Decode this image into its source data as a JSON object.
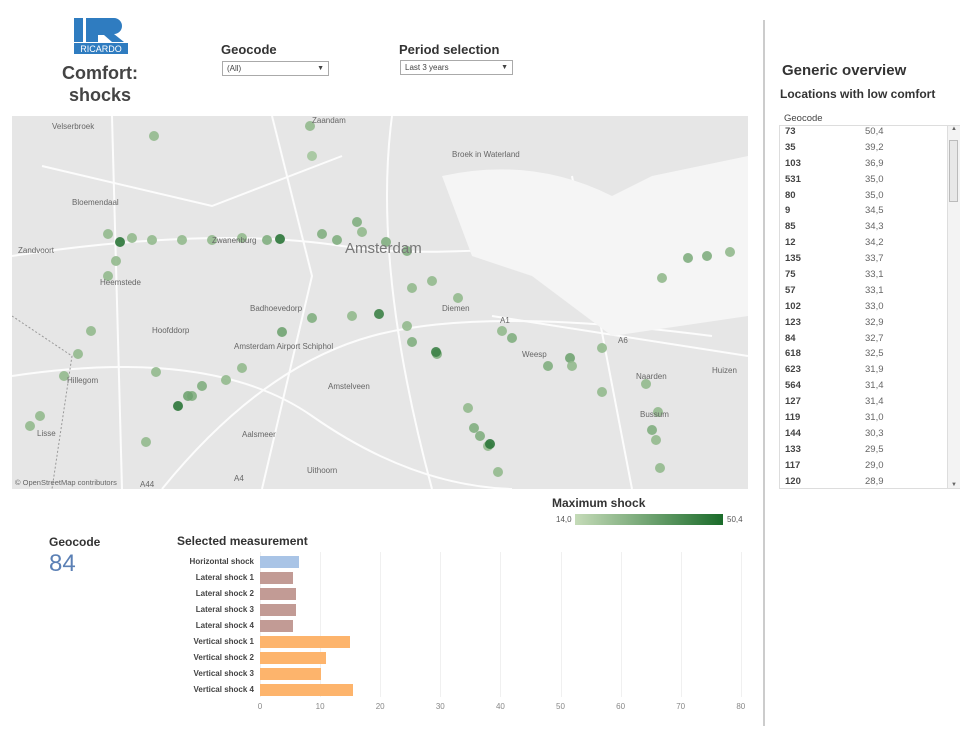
{
  "header": {
    "logo_text": "RICARDO",
    "title_line1": "Comfort:",
    "title_line2": "shocks"
  },
  "filters": {
    "geocode_label": "Geocode",
    "geocode_value": "(All)",
    "period_label": "Period selection",
    "period_value": "Last 3 years"
  },
  "map": {
    "places": [
      "Zaandam",
      "Velserbroek",
      "Broek in Waterland",
      "Bloemendaal",
      "Zandvoort",
      "Zwanenburg",
      "Amsterdam",
      "Heemstede",
      "Badhoevedorp",
      "Diemen",
      "Hoofddorp",
      "Amsterdam Airport Schiphol",
      "Amstelveen",
      "Weesp",
      "Naarden",
      "Huizen",
      "Hillegom",
      "Bussum",
      "Lisse",
      "Aalsmeer",
      "Uithoorn",
      "A1",
      "A6",
      "A4",
      "A44"
    ],
    "attribution": "© OpenStreetMap contributors"
  },
  "legend": {
    "title": "Maximum shock",
    "min": "14,0",
    "max": "50,4",
    "color_low": "#c5dbb8",
    "color_high": "#1a6b2a"
  },
  "selected": {
    "geocode_label": "Geocode",
    "geocode_value": "84",
    "chart_title": "Selected measurement"
  },
  "chart_data": {
    "type": "bar",
    "title": "Selected measurement",
    "categories": [
      "Horizontal shock",
      "Lateral shock 1",
      "Lateral shock 2",
      "Lateral shock 3",
      "Lateral shock 4",
      "Vertical shock 1",
      "Vertical shock 2",
      "Vertical shock 3",
      "Vertical shock 4"
    ],
    "values": [
      6.5,
      5.5,
      6.0,
      6.0,
      5.5,
      15.0,
      11.0,
      10.2,
      15.5
    ],
    "colors": [
      "#a9c4e6",
      "#c29b95",
      "#c29b95",
      "#c29b95",
      "#c29b95",
      "#fdb46c",
      "#fdb46c",
      "#fdb46c",
      "#fdb46c"
    ],
    "xlim": [
      0,
      80
    ],
    "ticks": [
      "0",
      "10",
      "20",
      "30",
      "40",
      "50",
      "60",
      "70",
      "80"
    ],
    "grid": true
  },
  "overview": {
    "title": "Generic overview",
    "subtitle": "Locations with low comfort",
    "column": "Geocode",
    "rows": [
      [
        "73",
        "50,4"
      ],
      [
        "35",
        "39,2"
      ],
      [
        "103",
        "36,9"
      ],
      [
        "531",
        "35,0"
      ],
      [
        "80",
        "35,0"
      ],
      [
        "9",
        "34,5"
      ],
      [
        "85",
        "34,3"
      ],
      [
        "12",
        "34,2"
      ],
      [
        "135",
        "33,7"
      ],
      [
        "75",
        "33,1"
      ],
      [
        "57",
        "33,1"
      ],
      [
        "102",
        "33,0"
      ],
      [
        "123",
        "32,9"
      ],
      [
        "84",
        "32,7"
      ],
      [
        "618",
        "32,5"
      ],
      [
        "623",
        "31,9"
      ],
      [
        "564",
        "31,4"
      ],
      [
        "127",
        "31,4"
      ],
      [
        "119",
        "31,0"
      ],
      [
        "144",
        "30,3"
      ],
      [
        "133",
        "29,5"
      ],
      [
        "117",
        "29,0"
      ],
      [
        "120",
        "28,9"
      ]
    ]
  }
}
